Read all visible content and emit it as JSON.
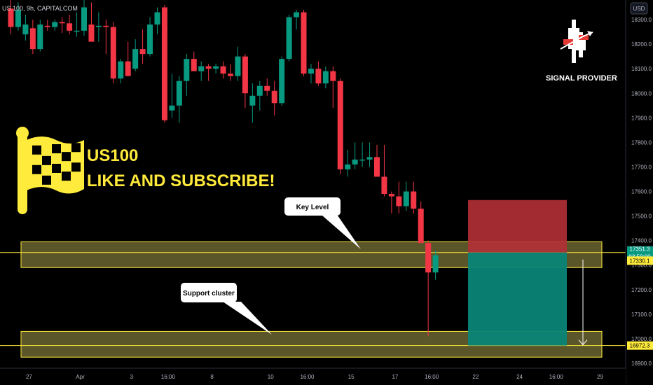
{
  "header": {
    "symbol": "US 100, 9h, CAPITALCOM",
    "currency": "USD"
  },
  "headline": {
    "line1": "US100",
    "line2": "LIKE AND SUBSCRIBE!"
  },
  "brand": {
    "text": "SIGNAL PROVIDER"
  },
  "callouts": {
    "key_level": "Key Level",
    "support": "Support cluster"
  },
  "price_tags": {
    "current": "17351.3",
    "countdown": "03:59:00",
    "key_level": "17330.1",
    "target": "16972.3"
  },
  "colors": {
    "bull": "#089981",
    "bear": "#f23645",
    "zone_fill": "#6b6530",
    "zone_line": "#ffeb3b",
    "stop_box": "#b23036",
    "target_box": "#0a8576",
    "flag": "#ffeb3b"
  },
  "chart_data": {
    "type": "candlestick",
    "title": "US 100, 9h, CAPITALCOM",
    "y_axis": {
      "unit": "USD",
      "range": [
        16880,
        18380
      ],
      "ticks": [
        16900.0,
        17000.0,
        17100.0,
        17200.0,
        17300.0,
        17400.0,
        17500.0,
        17600.0,
        17700.0,
        17800.0,
        17900.0,
        18000.0,
        18100.0,
        18200.0,
        18300.0
      ]
    },
    "x_axis": {
      "tick_labels": [
        "27",
        "Apr",
        "3",
        "16:00",
        "8",
        "10",
        "16:00",
        "15",
        "17",
        "16:00",
        "22",
        "24",
        "16:00",
        "29"
      ],
      "tick_index": [
        2,
        9,
        16,
        21,
        27,
        35,
        40,
        46,
        52,
        57,
        63,
        69,
        74,
        80
      ]
    },
    "candles": [
      {
        "o": 18345,
        "h": 18380,
        "l": 18240,
        "c": 18270
      },
      {
        "o": 18270,
        "h": 18370,
        "l": 18255,
        "c": 18340
      },
      {
        "o": 18240,
        "h": 18320,
        "l": 18215,
        "c": 18280
      },
      {
        "o": 18265,
        "h": 18300,
        "l": 18160,
        "c": 18180
      },
      {
        "o": 18180,
        "h": 18300,
        "l": 18170,
        "c": 18280
      },
      {
        "o": 18275,
        "h": 18300,
        "l": 18255,
        "c": 18270
      },
      {
        "o": 18270,
        "h": 18300,
        "l": 18255,
        "c": 18290
      },
      {
        "o": 18290,
        "h": 18310,
        "l": 18245,
        "c": 18285
      },
      {
        "o": 18285,
        "h": 18320,
        "l": 18240,
        "c": 18255
      },
      {
        "o": 18255,
        "h": 18330,
        "l": 18230,
        "c": 18255
      },
      {
        "o": 18255,
        "h": 18380,
        "l": 18235,
        "c": 18350
      },
      {
        "o": 18280,
        "h": 18370,
        "l": 18210,
        "c": 18210
      },
      {
        "o": 18270,
        "h": 18330,
        "l": 18210,
        "c": 18275
      },
      {
        "o": 18275,
        "h": 18300,
        "l": 18160,
        "c": 18270
      },
      {
        "o": 18270,
        "h": 18290,
        "l": 18040,
        "c": 18060
      },
      {
        "o": 18060,
        "h": 18140,
        "l": 18040,
        "c": 18130
      },
      {
        "o": 18130,
        "h": 18210,
        "l": 18070,
        "c": 18070
      },
      {
        "o": 18100,
        "h": 18220,
        "l": 18090,
        "c": 18180
      },
      {
        "o": 18180,
        "h": 18260,
        "l": 18120,
        "c": 18160
      },
      {
        "o": 18160,
        "h": 18310,
        "l": 18150,
        "c": 18280
      },
      {
        "o": 18280,
        "h": 18350,
        "l": 18240,
        "c": 18330
      },
      {
        "o": 18350,
        "h": 18360,
        "l": 17880,
        "c": 17890
      },
      {
        "o": 17930,
        "h": 18080,
        "l": 17900,
        "c": 17950
      },
      {
        "o": 17950,
        "h": 18070,
        "l": 17880,
        "c": 18050
      },
      {
        "o": 18050,
        "h": 18160,
        "l": 17990,
        "c": 18140
      },
      {
        "o": 18140,
        "h": 18170,
        "l": 18090,
        "c": 18090
      },
      {
        "o": 18090,
        "h": 18130,
        "l": 18050,
        "c": 18110
      },
      {
        "o": 18110,
        "h": 18120,
        "l": 18050,
        "c": 18100
      },
      {
        "o": 18100,
        "h": 18120,
        "l": 18080,
        "c": 18110
      },
      {
        "o": 18110,
        "h": 18130,
        "l": 18060,
        "c": 18080
      },
      {
        "o": 18080,
        "h": 18120,
        "l": 18050,
        "c": 18070
      },
      {
        "o": 18070,
        "h": 18190,
        "l": 18050,
        "c": 18150
      },
      {
        "o": 18150,
        "h": 18160,
        "l": 17940,
        "c": 18000
      },
      {
        "o": 17950,
        "h": 18040,
        "l": 17880,
        "c": 17990
      },
      {
        "o": 17990,
        "h": 18050,
        "l": 17930,
        "c": 18030
      },
      {
        "o": 18030,
        "h": 18060,
        "l": 17990,
        "c": 18010
      },
      {
        "o": 18010,
        "h": 18050,
        "l": 17910,
        "c": 17960
      },
      {
        "o": 17960,
        "h": 18150,
        "l": 17950,
        "c": 18140
      },
      {
        "o": 18140,
        "h": 18320,
        "l": 18130,
        "c": 18310
      },
      {
        "o": 18310,
        "h": 18340,
        "l": 18260,
        "c": 18330
      },
      {
        "o": 18330,
        "h": 18340,
        "l": 18070,
        "c": 18080
      },
      {
        "o": 18080,
        "h": 18120,
        "l": 18040,
        "c": 18100
      },
      {
        "o": 18100,
        "h": 18130,
        "l": 18030,
        "c": 18040
      },
      {
        "o": 18040,
        "h": 18110,
        "l": 18020,
        "c": 18090
      },
      {
        "o": 18090,
        "h": 18110,
        "l": 17940,
        "c": 18050
      },
      {
        "o": 18050,
        "h": 18060,
        "l": 17670,
        "c": 17690
      },
      {
        "o": 17690,
        "h": 17770,
        "l": 17660,
        "c": 17710
      },
      {
        "o": 17710,
        "h": 17800,
        "l": 17690,
        "c": 17730
      },
      {
        "o": 17730,
        "h": 17800,
        "l": 17700,
        "c": 17730
      },
      {
        "o": 17730,
        "h": 17800,
        "l": 17700,
        "c": 17740
      },
      {
        "o": 17740,
        "h": 17790,
        "l": 17670,
        "c": 17660
      },
      {
        "o": 17660,
        "h": 17790,
        "l": 17580,
        "c": 17590
      },
      {
        "o": 17590,
        "h": 17600,
        "l": 17510,
        "c": 17580
      },
      {
        "o": 17580,
        "h": 17640,
        "l": 17510,
        "c": 17540
      },
      {
        "o": 17540,
        "h": 17640,
        "l": 17520,
        "c": 17600
      },
      {
        "o": 17600,
        "h": 17640,
        "l": 17510,
        "c": 17530
      },
      {
        "o": 17530,
        "h": 17560,
        "l": 17400,
        "c": 17390
      },
      {
        "o": 17390,
        "h": 17400,
        "l": 17010,
        "c": 17270
      },
      {
        "o": 17270,
        "h": 17360,
        "l": 17240,
        "c": 17340
      }
    ],
    "zones": [
      {
        "name": "Key Level",
        "from": 17290,
        "to": 17395
      },
      {
        "name": "Support cluster",
        "from": 16925,
        "to": 17030
      }
    ],
    "horizontal_lines": [
      17351.3,
      16972.3
    ],
    "position": {
      "entry": 17351.3,
      "stop": 17565,
      "target": 16972.3,
      "side": "short"
    }
  }
}
